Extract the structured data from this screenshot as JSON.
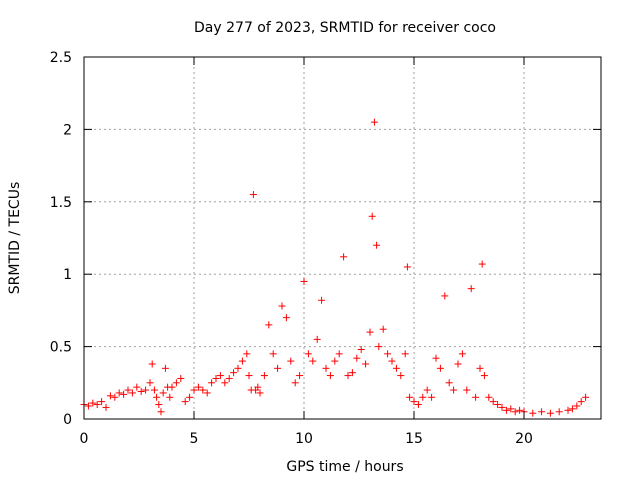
{
  "chart_data": {
    "type": "scatter",
    "title": "Day 277 of 2023, SRMTID for receiver coco",
    "xlabel": "GPS time / hours",
    "ylabel": "SRMTID / TECUs",
    "xlim": [
      0,
      23.5
    ],
    "ylim": [
      0,
      2.5
    ],
    "xticks": [
      0,
      5,
      10,
      15,
      20
    ],
    "xtick_labels": [
      "0",
      "5",
      "10",
      "15",
      "20"
    ],
    "yticks": [
      0,
      0.5,
      1,
      1.5,
      2,
      2.5
    ],
    "ytick_labels": [
      "0",
      "0.5",
      "1",
      "1.5",
      "2",
      "2.5"
    ],
    "grid": true,
    "marker": "+",
    "series": [
      {
        "name": "SRMTID",
        "color": "#ff0000",
        "x": [
          0.0,
          0.2,
          0.4,
          0.6,
          0.8,
          1.0,
          1.2,
          1.4,
          1.6,
          1.8,
          2.0,
          2.2,
          2.4,
          2.6,
          2.8,
          3.0,
          3.1,
          3.2,
          3.3,
          3.4,
          3.5,
          3.6,
          3.7,
          3.8,
          3.9,
          4.0,
          4.2,
          4.4,
          4.6,
          4.8,
          5.0,
          5.2,
          5.4,
          5.6,
          5.8,
          6.0,
          6.2,
          6.4,
          6.6,
          6.8,
          7.0,
          7.2,
          7.4,
          7.5,
          7.6,
          7.7,
          7.8,
          7.9,
          8.0,
          8.2,
          8.4,
          8.6,
          8.8,
          9.0,
          9.2,
          9.4,
          9.6,
          9.8,
          10.0,
          10.2,
          10.4,
          10.6,
          10.8,
          11.0,
          11.2,
          11.4,
          11.6,
          11.8,
          12.0,
          12.2,
          12.4,
          12.6,
          12.8,
          13.0,
          13.1,
          13.2,
          13.3,
          13.4,
          13.6,
          13.8,
          14.0,
          14.2,
          14.4,
          14.6,
          14.7,
          14.8,
          15.0,
          15.2,
          15.4,
          15.6,
          15.8,
          16.0,
          16.2,
          16.4,
          16.6,
          16.8,
          17.0,
          17.2,
          17.4,
          17.6,
          17.8,
          18.0,
          18.1,
          18.2,
          18.4,
          18.6,
          18.8,
          19.0,
          19.2,
          19.4,
          19.6,
          19.8,
          20.0,
          20.4,
          20.8,
          21.2,
          21.6,
          22.0,
          22.2,
          22.4,
          22.6,
          22.8
        ],
        "y": [
          0.1,
          0.09,
          0.11,
          0.1,
          0.12,
          0.08,
          0.16,
          0.15,
          0.18,
          0.17,
          0.2,
          0.18,
          0.22,
          0.19,
          0.2,
          0.25,
          0.38,
          0.2,
          0.15,
          0.1,
          0.05,
          0.18,
          0.35,
          0.22,
          0.15,
          0.22,
          0.25,
          0.28,
          0.12,
          0.15,
          0.2,
          0.22,
          0.2,
          0.18,
          0.25,
          0.28,
          0.3,
          0.25,
          0.28,
          0.32,
          0.35,
          0.4,
          0.45,
          0.3,
          0.2,
          1.55,
          0.2,
          0.22,
          0.18,
          0.3,
          0.65,
          0.45,
          0.35,
          0.78,
          0.7,
          0.4,
          0.25,
          0.3,
          0.95,
          0.45,
          0.4,
          0.55,
          0.82,
          0.35,
          0.3,
          0.4,
          0.45,
          1.12,
          0.3,
          0.32,
          0.42,
          0.48,
          0.38,
          0.6,
          1.4,
          2.05,
          1.2,
          0.5,
          0.62,
          0.45,
          0.4,
          0.35,
          0.3,
          0.45,
          1.05,
          0.15,
          0.12,
          0.1,
          0.15,
          0.2,
          0.15,
          0.42,
          0.35,
          0.85,
          0.25,
          0.2,
          0.38,
          0.45,
          0.2,
          0.9,
          0.15,
          0.35,
          1.07,
          0.3,
          0.15,
          0.12,
          0.1,
          0.08,
          0.06,
          0.07,
          0.05,
          0.06,
          0.05,
          0.04,
          0.05,
          0.04,
          0.05,
          0.06,
          0.07,
          0.09,
          0.12,
          0.15
        ]
      }
    ]
  }
}
